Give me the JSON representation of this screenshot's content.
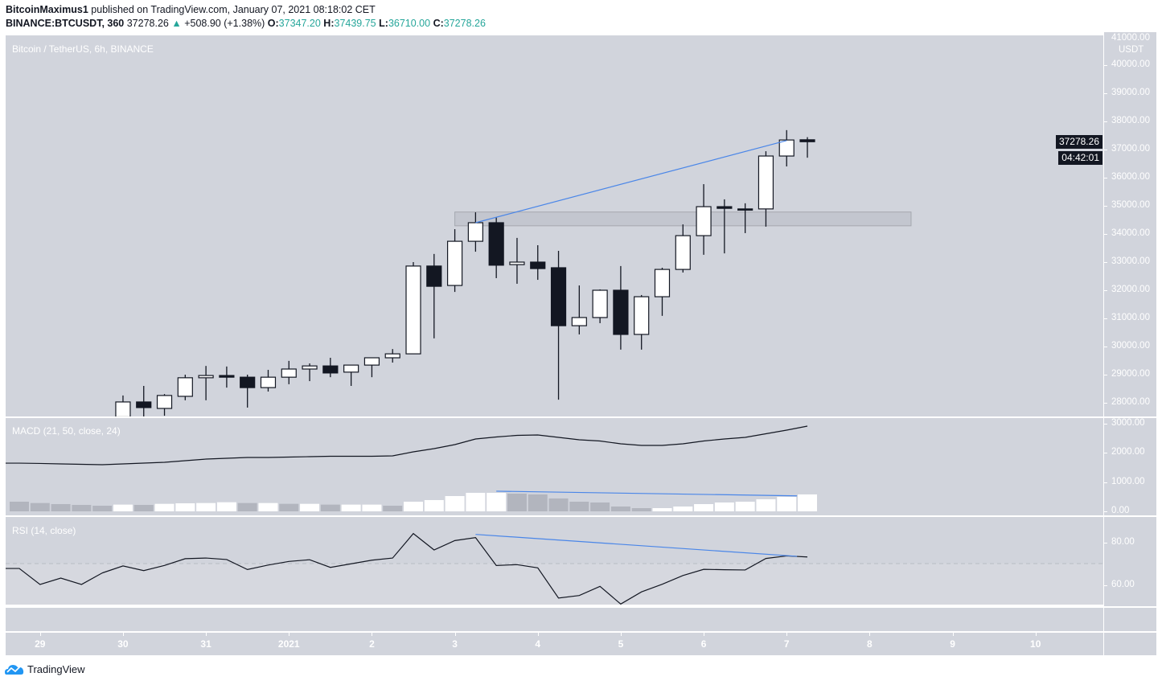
{
  "header": {
    "author": "BitcoinMaximus1",
    "published_text": "published on TradingView.com, January 07, 2021 08:18:02 CET",
    "symbol": "BINANCE:BTCUSDT, 360",
    "last": "37278.26",
    "change": "+508.90 (+1.38%)",
    "o_label": "O:",
    "o": "37347.20",
    "h_label": "H:",
    "h": "37439.75",
    "l_label": "L:",
    "l": "36710.00",
    "c_label": "C:",
    "c": "37278.26"
  },
  "main_pane": {
    "title": "Bitcoin / TetherUS, 6h, BINANCE"
  },
  "macd_pane": {
    "title": "MACD (21, 50, close, 24)"
  },
  "rsi_pane": {
    "title": "RSI (14, close)"
  },
  "price_axis": {
    "currency": "USDT",
    "top_hidden_label": "41000.00",
    "labels": [
      "40000.00",
      "39000.00",
      "38000.00",
      "37000.00",
      "36000.00",
      "35000.00",
      "34000.00",
      "33000.00",
      "32000.00",
      "31000.00",
      "30000.00",
      "29000.00",
      "28000.00"
    ],
    "last_price_tag": "37278.26",
    "countdown": "04:42:01"
  },
  "macd_axis": {
    "labels": [
      "3000.00",
      "2000.00",
      "1000.00",
      "0.00"
    ]
  },
  "rsi_axis": {
    "labels": [
      "80.00",
      "60.00"
    ]
  },
  "time_axis": {
    "labels": [
      "29",
      "30",
      "31",
      "2021",
      "2",
      "3",
      "4",
      "5",
      "6",
      "7",
      "8",
      "9",
      "10"
    ]
  },
  "footer": {
    "brand": "TradingView"
  },
  "colors": {
    "background": "#d1d4dc",
    "up_body": "#ffffff",
    "down_body": "#131722",
    "trendline": "#4a86e8",
    "hist_rising": "#ffffff",
    "hist_falling": "#b2b5be",
    "zone": "#b2b5be"
  },
  "chart_data": [
    {
      "type": "candlestick",
      "title": "Bitcoin / TetherUS, 6h, BINANCE",
      "interval_hours": 6,
      "ylim": [
        27400,
        41000
      ],
      "time_ticks": [
        "2020-12-29",
        "2020-12-30",
        "2020-12-31",
        "2021-01-01",
        "2021-01-02",
        "2021-01-03",
        "2021-01-04",
        "2021-01-05",
        "2021-01-06",
        "2021-01-07",
        "2021-01-08",
        "2021-01-09",
        "2021-01-10"
      ],
      "candles": [
        {
          "t": "2020-12-30T00:00",
          "o": 27500,
          "h": 28260,
          "l": 27400,
          "c": 28030
        },
        {
          "t": "2020-12-30T06:00",
          "o": 28030,
          "h": 28600,
          "l": 27400,
          "c": 27830
        },
        {
          "t": "2020-12-30T12:00",
          "o": 27800,
          "h": 28310,
          "l": 27540,
          "c": 28260
        },
        {
          "t": "2020-12-30T18:00",
          "o": 28230,
          "h": 29000,
          "l": 28090,
          "c": 28890
        },
        {
          "t": "2020-12-31T00:00",
          "o": 28890,
          "h": 29310,
          "l": 28090,
          "c": 28970
        },
        {
          "t": "2020-12-31T06:00",
          "o": 28970,
          "h": 29290,
          "l": 28540,
          "c": 28910
        },
        {
          "t": "2020-12-31T12:00",
          "o": 28910,
          "h": 29000,
          "l": 27830,
          "c": 28540
        },
        {
          "t": "2020-12-31T18:00",
          "o": 28540,
          "h": 29170,
          "l": 28400,
          "c": 28910
        },
        {
          "t": "2021-01-01T00:00",
          "o": 28910,
          "h": 29490,
          "l": 28660,
          "c": 29200
        },
        {
          "t": "2021-01-01T06:00",
          "o": 29200,
          "h": 29400,
          "l": 28770,
          "c": 29310
        },
        {
          "t": "2021-01-01T12:00",
          "o": 29310,
          "h": 29600,
          "l": 28910,
          "c": 29060
        },
        {
          "t": "2021-01-01T18:00",
          "o": 29090,
          "h": 29340,
          "l": 28600,
          "c": 29340
        },
        {
          "t": "2021-01-02T00:00",
          "o": 29340,
          "h": 29600,
          "l": 28910,
          "c": 29600
        },
        {
          "t": "2021-01-02T06:00",
          "o": 29600,
          "h": 29910,
          "l": 29430,
          "c": 29740
        },
        {
          "t": "2021-01-02T12:00",
          "o": 29740,
          "h": 33000,
          "l": 29740,
          "c": 32860
        },
        {
          "t": "2021-01-02T18:00",
          "o": 32860,
          "h": 33290,
          "l": 30290,
          "c": 32140
        },
        {
          "t": "2021-01-03T00:00",
          "o": 32170,
          "h": 34170,
          "l": 31940,
          "c": 33740
        },
        {
          "t": "2021-01-03T06:00",
          "o": 33740,
          "h": 34770,
          "l": 33370,
          "c": 34400
        },
        {
          "t": "2021-01-03T12:00",
          "o": 34400,
          "h": 34600,
          "l": 32430,
          "c": 32890
        },
        {
          "t": "2021-01-03T18:00",
          "o": 32910,
          "h": 33860,
          "l": 32230,
          "c": 33000
        },
        {
          "t": "2021-01-04T00:00",
          "o": 33000,
          "h": 33600,
          "l": 32370,
          "c": 32770
        },
        {
          "t": "2021-01-04T06:00",
          "o": 32800,
          "h": 33400,
          "l": 28110,
          "c": 30740
        },
        {
          "t": "2021-01-04T12:00",
          "o": 30740,
          "h": 32170,
          "l": 30430,
          "c": 31030
        },
        {
          "t": "2021-01-04T18:00",
          "o": 31030,
          "h": 32030,
          "l": 30830,
          "c": 32000
        },
        {
          "t": "2021-01-05T00:00",
          "o": 32000,
          "h": 32860,
          "l": 29890,
          "c": 30430
        },
        {
          "t": "2021-01-05T06:00",
          "o": 30430,
          "h": 31830,
          "l": 29890,
          "c": 31770
        },
        {
          "t": "2021-01-05T12:00",
          "o": 31770,
          "h": 32800,
          "l": 31090,
          "c": 32740
        },
        {
          "t": "2021-01-05T18:00",
          "o": 32740,
          "h": 34340,
          "l": 32630,
          "c": 33940
        },
        {
          "t": "2021-01-06T00:00",
          "o": 33940,
          "h": 35770,
          "l": 33260,
          "c": 34970
        },
        {
          "t": "2021-01-06T06:00",
          "o": 34970,
          "h": 35230,
          "l": 33310,
          "c": 34910
        },
        {
          "t": "2021-01-06T12:00",
          "o": 34890,
          "h": 35090,
          "l": 34030,
          "c": 34860
        },
        {
          "t": "2021-01-06T18:00",
          "o": 34890,
          "h": 36940,
          "l": 34260,
          "c": 36770
        },
        {
          "t": "2021-01-07T00:00",
          "o": 36770,
          "h": 37690,
          "l": 36400,
          "c": 37340
        },
        {
          "t": "2021-01-07T06:00",
          "o": 37347.2,
          "h": 37439.75,
          "l": 36710.0,
          "c": 37278.26
        }
      ],
      "annotations": [
        {
          "type": "zone",
          "t1": "2021-01-03T00:00",
          "t2": "2021-01-08T12:00",
          "p1": 34290,
          "p2": 34780
        },
        {
          "type": "trendline",
          "t1": "2021-01-03T06:00",
          "p1": 34400,
          "t2": "2021-01-07T00:00",
          "p2": 37320
        }
      ]
    },
    {
      "type": "line+bar",
      "title": "MACD (21, 50, close, 24)",
      "start": "2020-12-28T18:00",
      "interval_hours": 6,
      "ylim": [
        0,
        3000
      ],
      "macd": [
        1650,
        1640,
        1624,
        1610,
        1596,
        1624,
        1651,
        1679,
        1734,
        1789,
        1817,
        1844,
        1844,
        1858,
        1872,
        1886,
        1886,
        1886,
        1899,
        2037,
        2147,
        2285,
        2477,
        2546,
        2601,
        2615,
        2532,
        2450,
        2408,
        2312,
        2257,
        2257,
        2312,
        2408,
        2477,
        2532,
        2656,
        2780,
        2918
      ],
      "histogram": [
        330,
        284,
        248,
        220,
        193,
        230,
        220,
        257,
        275,
        284,
        312,
        284,
        284,
        257,
        257,
        230,
        230,
        230,
        193,
        330,
        386,
        523,
        634,
        634,
        606,
        579,
        441,
        330,
        303,
        165,
        110,
        110,
        165,
        248,
        303,
        330,
        413,
        496,
        579
      ],
      "annotations": [
        {
          "type": "trendline",
          "t1": "2021-01-03T12:00",
          "v1": 690,
          "t2": "2021-01-07T03:00",
          "v2": 530
        }
      ]
    },
    {
      "type": "line",
      "title": "RSI (14, close)",
      "start": "2020-12-28T18:00",
      "interval_hours": 6,
      "ylim": [
        50,
        85
      ],
      "level": 70,
      "rsi": [
        67.9,
        60.4,
        63.4,
        60.4,
        65.8,
        69.1,
        66.9,
        69.3,
        72.5,
        72.8,
        72.1,
        67.4,
        69.5,
        71.2,
        72.0,
        68.4,
        70.1,
        71.8,
        72.8,
        84.3,
        76.6,
        81.0,
        82.4,
        69.3,
        69.7,
        68.2,
        54.0,
        55.2,
        59.5,
        51.2,
        56.9,
        60.5,
        64.6,
        67.5,
        67.3,
        67.2,
        72.6,
        73.8,
        73.3
      ],
      "annotations": [
        {
          "type": "trendline",
          "t1": "2021-01-03T06:00",
          "v1": 83.9,
          "t2": "2021-01-07T03:00",
          "v2": 73.6
        }
      ]
    }
  ]
}
